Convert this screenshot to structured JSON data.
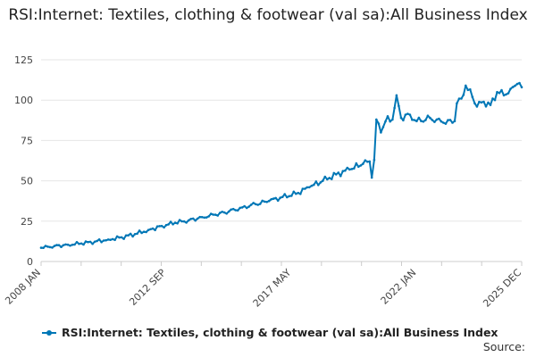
{
  "chart_data": {
    "type": "line",
    "title": "RSI:Internet: Textiles, clothing & footwear (val sa):All Business Index",
    "xlabel": "",
    "ylabel": "",
    "ylim": [
      0,
      125
    ],
    "yticks": [
      0,
      25,
      50,
      75,
      100,
      125
    ],
    "xticks": [
      {
        "label": "2008 JAN",
        "x": 2008.0
      },
      {
        "label": "2012 SEP",
        "x": 2012.667
      },
      {
        "label": "2017 MAY",
        "x": 2017.333
      },
      {
        "label": "2022 JAN",
        "x": 2022.0
      },
      {
        "label": "2025 DEC",
        "x": 2025.917
      }
    ],
    "grid": true,
    "legend_position": "bottom",
    "series": [
      {
        "name": "RSI:Internet: Textiles, clothing & footwear (val sa):All Business Index",
        "color": "#0077b6",
        "points": [
          [
            2008.0,
            8.5
          ],
          [
            2008.5,
            9.6
          ],
          [
            2009.0,
            10.4
          ],
          [
            2009.5,
            11.2
          ],
          [
            2010.0,
            12.3
          ],
          [
            2010.5,
            13.6
          ],
          [
            2011.0,
            15.0
          ],
          [
            2011.5,
            17.0
          ],
          [
            2012.0,
            19.5
          ],
          [
            2012.5,
            22.0
          ],
          [
            2013.0,
            24.0
          ],
          [
            2013.5,
            25.5
          ],
          [
            2014.0,
            27.5
          ],
          [
            2014.5,
            29.0
          ],
          [
            2015.0,
            31.0
          ],
          [
            2015.5,
            33.5
          ],
          [
            2016.0,
            35.5
          ],
          [
            2016.5,
            37.5
          ],
          [
            2017.0,
            40.0
          ],
          [
            2017.5,
            42.0
          ],
          [
            2018.0,
            46.0
          ],
          [
            2018.5,
            50.0
          ],
          [
            2019.0,
            54.0
          ],
          [
            2019.5,
            57.0
          ],
          [
            2020.0,
            60.5
          ],
          [
            2020.25,
            62.0
          ],
          [
            2020.33,
            52.0
          ],
          [
            2020.42,
            63.0
          ],
          [
            2020.5,
            88.0
          ],
          [
            2020.67,
            80.0
          ],
          [
            2020.92,
            90.0
          ],
          [
            2021.1,
            88.0
          ],
          [
            2021.25,
            103.0
          ],
          [
            2021.42,
            89.0
          ],
          [
            2021.75,
            91.0
          ],
          [
            2022.0,
            87.0
          ],
          [
            2022.5,
            89.0
          ],
          [
            2023.0,
            86.0
          ],
          [
            2023.42,
            87.0
          ],
          [
            2023.5,
            98.0
          ],
          [
            2023.67,
            101.0
          ],
          [
            2023.83,
            109.0
          ],
          [
            2024.08,
            102.0
          ],
          [
            2024.25,
            96.0
          ],
          [
            2024.5,
            99.0
          ],
          [
            2024.75,
            97.0
          ],
          [
            2025.0,
            105.0
          ],
          [
            2025.25,
            103.0
          ],
          [
            2025.5,
            107.0
          ],
          [
            2025.75,
            110.0
          ],
          [
            2025.917,
            108.0
          ]
        ]
      }
    ]
  },
  "source_label": "Source:"
}
